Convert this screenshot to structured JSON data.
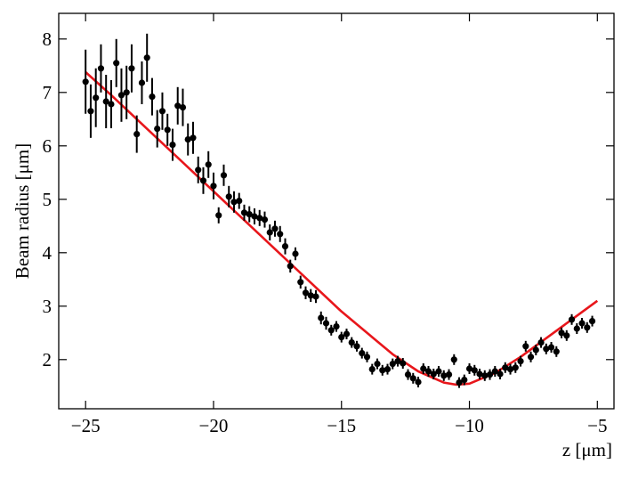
{
  "chart_data": {
    "type": "scatter",
    "x_label": "z [μm]",
    "y_label": "Beam radius [μm]",
    "xlim": [
      -26.05,
      -4.35
    ],
    "ylim": [
      1.08,
      8.48
    ],
    "xticks": [
      {
        "value": -25,
        "label": "−25"
      },
      {
        "value": -20,
        "label": "−20"
      },
      {
        "value": -15,
        "label": "−15"
      },
      {
        "value": -10,
        "label": "−10"
      },
      {
        "value": -5,
        "label": "−5"
      }
    ],
    "yticks": [
      2,
      3,
      4,
      5,
      6,
      7,
      8
    ],
    "series": [
      {
        "style": "errorbar",
        "color": "#000000",
        "x": [
          -25,
          -24.8,
          -24.6,
          -24.4,
          -24.2,
          -24,
          -23.8,
          -23.6,
          -23.4,
          -23.2,
          -23,
          -22.8,
          -22.6,
          -22.4,
          -22.2,
          -22,
          -21.8,
          -21.6,
          -21.4,
          -21.2,
          -21,
          -20.8,
          -20.6,
          -20.4,
          -20.2,
          -20,
          -19.8,
          -19.6,
          -19.4,
          -19.2,
          -19,
          -18.8,
          -18.6,
          -18.4,
          -18.2,
          -18,
          -17.8,
          -17.6,
          -17.4,
          -17.2,
          -17,
          -16.8,
          -16.6,
          -16.4,
          -16.2,
          -16,
          -15.8,
          -15.6,
          -15.4,
          -15.2,
          -15,
          -14.8,
          -14.6,
          -14.4,
          -14.2,
          -14,
          -13.8,
          -13.6,
          -13.4,
          -13.2,
          -13,
          -12.8,
          -12.6,
          -12.4,
          -12.2,
          -12,
          -11.8,
          -11.6,
          -11.4,
          -11.2,
          -11,
          -10.8,
          -10.6,
          -10.4,
          -10.2,
          -10,
          -9.8,
          -9.6,
          -9.4,
          -9.2,
          -9,
          -8.8,
          -8.6,
          -8.4,
          -8.2,
          -8,
          -7.8,
          -7.6,
          -7.4,
          -7.2,
          -7,
          -6.8,
          -6.6,
          -6.4,
          -6.2,
          -6,
          -5.8,
          -5.6,
          -5.4,
          -5.2
        ],
        "values": [
          7.2,
          6.65,
          6.9,
          7.45,
          6.83,
          6.78,
          7.55,
          6.95,
          7.0,
          7.45,
          6.22,
          7.18,
          7.65,
          6.92,
          6.32,
          6.65,
          6.3,
          6.02,
          6.75,
          6.72,
          6.12,
          6.15,
          5.55,
          5.35,
          5.65,
          5.25,
          4.7,
          5.45,
          5.05,
          4.95,
          4.97,
          4.75,
          4.72,
          4.68,
          4.65,
          4.62,
          4.38,
          4.45,
          4.35,
          4.12,
          3.75,
          3.98,
          3.45,
          3.25,
          3.2,
          3.18,
          2.78,
          2.68,
          2.55,
          2.62,
          2.42,
          2.48,
          2.32,
          2.25,
          2.12,
          2.05,
          1.82,
          1.92,
          1.8,
          1.82,
          1.92,
          1.97,
          1.93,
          1.72,
          1.65,
          1.58,
          1.83,
          1.78,
          1.73,
          1.78,
          1.7,
          1.72,
          2.0,
          1.57,
          1.62,
          1.83,
          1.8,
          1.73,
          1.7,
          1.72,
          1.78,
          1.73,
          1.85,
          1.82,
          1.85,
          1.97,
          2.25,
          2.05,
          2.18,
          2.32,
          2.2,
          2.23,
          2.15,
          2.5,
          2.45,
          2.75,
          2.58,
          2.68,
          2.6,
          2.72
        ],
        "errors": [
          0.6,
          0.5,
          0.55,
          0.45,
          0.5,
          0.45,
          0.45,
          0.5,
          0.5,
          0.45,
          0.35,
          0.4,
          0.45,
          0.35,
          0.35,
          0.35,
          0.3,
          0.3,
          0.35,
          0.35,
          0.3,
          0.3,
          0.25,
          0.25,
          0.25,
          0.25,
          0.15,
          0.2,
          0.2,
          0.2,
          0.15,
          0.15,
          0.15,
          0.15,
          0.15,
          0.15,
          0.15,
          0.15,
          0.15,
          0.15,
          0.12,
          0.12,
          0.12,
          0.12,
          0.12,
          0.12,
          0.12,
          0.12,
          0.1,
          0.1,
          0.1,
          0.1,
          0.1,
          0.1,
          0.1,
          0.1,
          0.1,
          0.1,
          0.1,
          0.1,
          0.1,
          0.1,
          0.1,
          0.1,
          0.1,
          0.1,
          0.1,
          0.1,
          0.1,
          0.1,
          0.1,
          0.1,
          0.1,
          0.1,
          0.1,
          0.1,
          0.1,
          0.1,
          0.1,
          0.1,
          0.1,
          0.1,
          0.1,
          0.1,
          0.1,
          0.1,
          0.1,
          0.1,
          0.1,
          0.1,
          0.1,
          0.1,
          0.1,
          0.1,
          0.1,
          0.1,
          0.1,
          0.1,
          0.1,
          0.1
        ]
      },
      {
        "style": "line",
        "color": "#e8161b",
        "x": [
          -25,
          -24,
          -23,
          -22,
          -21,
          -20,
          -19,
          -18,
          -17,
          -16,
          -15,
          -14,
          -13,
          -12,
          -11,
          -10.5,
          -10,
          -9,
          -8,
          -7,
          -6,
          -5
        ],
        "values": [
          7.38,
          6.95,
          6.5,
          6.05,
          5.6,
          5.15,
          4.7,
          4.25,
          3.8,
          3.35,
          2.9,
          2.5,
          2.1,
          1.78,
          1.57,
          1.53,
          1.55,
          1.75,
          2.05,
          2.4,
          2.75,
          3.1
        ]
      }
    ]
  }
}
